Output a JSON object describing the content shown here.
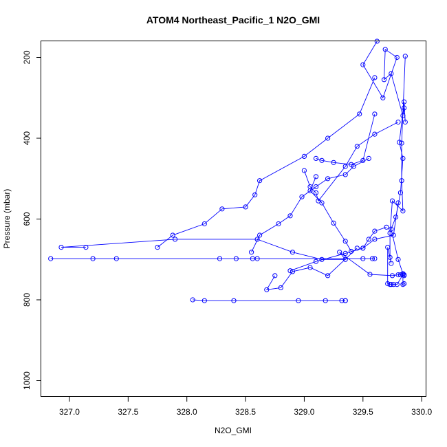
{
  "chart_data": {
    "type": "line",
    "title": "ATOM4 Northeast_Pacific_1 N2O_GMI",
    "xlabel": "N2O_GMI",
    "ylabel": "Pressure (mbar)",
    "xlim": [
      326.76,
      330.04
    ],
    "ylim": [
      1040,
      160
    ],
    "y_reversed": true,
    "x_ticks": [
      327.0,
      327.5,
      328.0,
      328.5,
      329.0,
      329.5,
      330.0
    ],
    "x_tick_labels": [
      "327.0",
      "327.5",
      "328.0",
      "328.5",
      "329.0",
      "329.5",
      "330.0"
    ],
    "y_ticks": [
      200,
      400,
      600,
      800,
      1000
    ],
    "y_tick_labels": [
      "200",
      "400",
      "600",
      "800",
      "1000"
    ],
    "series_color": "#0000ff",
    "marker": "open-circle",
    "grid": false,
    "series": [
      {
        "x": [
          329.62,
          329.5,
          329.67,
          329.79,
          329.69,
          329.68,
          329.74,
          329.84,
          329.85,
          329.86,
          329.85,
          329.81,
          329.84,
          329.82,
          329.78,
          329.74,
          329.8,
          329.84,
          329.84,
          329.85
        ],
        "y": [
          160,
          218,
          300,
          200,
          180,
          255,
          240,
          344,
          325,
          360,
          310,
          410,
          450,
          535,
          595,
          625,
          700,
          735,
          762,
          760
        ]
      },
      {
        "x": [
          329.86,
          329.83,
          329.83,
          329.84,
          329.75,
          329.73,
          329.73,
          329.74,
          329.71,
          329.71,
          329.73,
          329.74,
          329.76,
          329.79,
          329.84,
          329.85
        ],
        "y": [
          197,
          412,
          505,
          580,
          555,
          635,
          695,
          710,
          670,
          760,
          762,
          762,
          762,
          762,
          738,
          740
        ]
      },
      {
        "x": [
          329.6,
          329.47,
          329.2,
          329.0,
          328.62,
          328.58,
          328.5,
          328.3,
          328.15,
          327.88,
          327.75
        ],
        "y": [
          250,
          340,
          400,
          445,
          505,
          540,
          570,
          575,
          612,
          640,
          670
        ]
      },
      {
        "x": [
          327.14,
          326.93,
          327.9,
          328.6,
          328.9,
          329.15,
          329.35,
          329.3,
          329.56,
          329.75,
          329.8,
          329.82,
          329.85
        ],
        "y": [
          670,
          670,
          650,
          650,
          682,
          700,
          700,
          682,
          737,
          740,
          738,
          738,
          738
        ]
      },
      {
        "x": [
          326.84,
          327.2,
          327.4,
          328.28,
          328.42,
          328.56,
          328.6,
          329.5,
          329.58,
          329.6
        ],
        "y": [
          698,
          698,
          698,
          698,
          698,
          698,
          698,
          698,
          698,
          698
        ]
      },
      {
        "x": [
          328.05,
          328.15,
          328.4,
          328.95,
          329.18,
          329.32,
          329.35,
          329.35
        ],
        "y": [
          800,
          802,
          802,
          802,
          802,
          802,
          802,
          802
        ]
      },
      {
        "x": [
          328.88,
          329.1,
          329.35,
          329.5,
          329.6,
          329.76,
          329.8
        ],
        "y": [
          728,
          705,
          685,
          672,
          650,
          640,
          560
        ]
      },
      {
        "x": [
          328.75,
          328.68,
          328.8,
          328.9,
          329.05,
          329.2,
          329.45
        ],
        "y": [
          740,
          775,
          770,
          730,
          720,
          740,
          672
        ]
      },
      {
        "x": [
          329.0,
          329.05,
          329.1,
          329.12,
          329.35,
          329.45,
          329.6,
          329.8
        ],
        "y": [
          480,
          520,
          535,
          555,
          470,
          420,
          390,
          360
        ]
      },
      {
        "x": [
          329.1,
          329.05,
          329.15,
          329.25,
          329.35,
          329.4,
          329.5,
          329.55,
          329.6,
          329.7
        ],
        "y": [
          495,
          530,
          560,
          610,
          655,
          680,
          672,
          650,
          630,
          620
        ]
      },
      {
        "x": [
          328.55,
          328.62,
          328.78,
          328.88,
          328.98,
          329.1,
          329.2,
          329.35,
          329.42,
          329.55
        ],
        "y": [
          682,
          640,
          612,
          592,
          545,
          520,
          500,
          490,
          470,
          450
        ]
      },
      {
        "x": [
          329.1,
          329.15,
          329.25,
          329.4,
          329.5,
          329.6
        ],
        "y": [
          450,
          455,
          460,
          465,
          455,
          340
        ]
      }
    ]
  }
}
